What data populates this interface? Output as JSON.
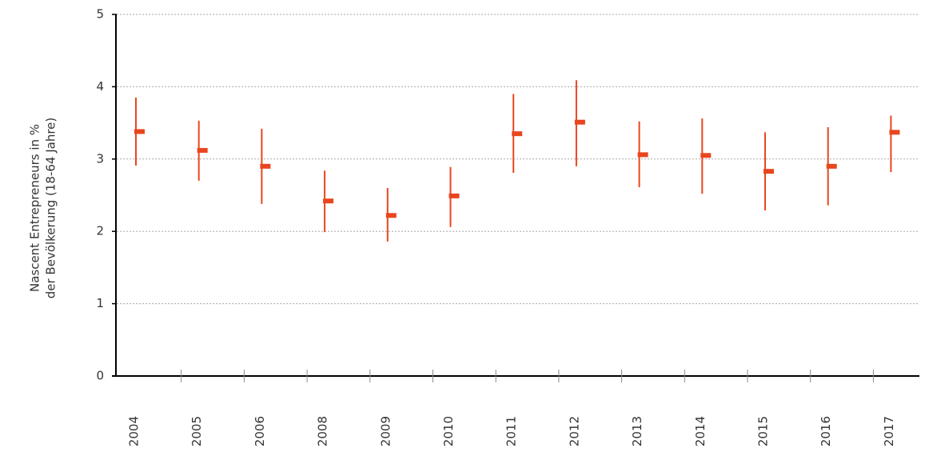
{
  "chart_data": {
    "type": "errorbar",
    "y_label": [
      "Nascent Entrepreneurs in %",
      "der Bevölkerung (18-64 Jahre)"
    ],
    "categories": [
      "2004",
      "2005",
      "2006",
      "2008",
      "2009",
      "2010",
      "2011",
      "2012",
      "2013",
      "2014",
      "2015",
      "2016",
      "2017"
    ],
    "values": [
      3.38,
      3.12,
      2.9,
      2.42,
      2.22,
      2.49,
      3.35,
      3.51,
      3.06,
      3.05,
      2.83,
      2.9,
      3.37
    ],
    "lower": [
      2.91,
      2.7,
      2.38,
      1.99,
      1.86,
      2.06,
      2.81,
      2.9,
      2.61,
      2.52,
      2.29,
      2.36,
      2.82
    ],
    "upper": [
      3.85,
      3.53,
      3.42,
      2.84,
      2.6,
      2.89,
      3.9,
      4.09,
      3.52,
      3.56,
      3.37,
      3.44,
      3.6
    ],
    "color": "#e8461e",
    "ylim": [
      0,
      5
    ],
    "yticks": [
      0,
      1,
      2,
      3,
      4,
      5
    ],
    "grid": true
  }
}
